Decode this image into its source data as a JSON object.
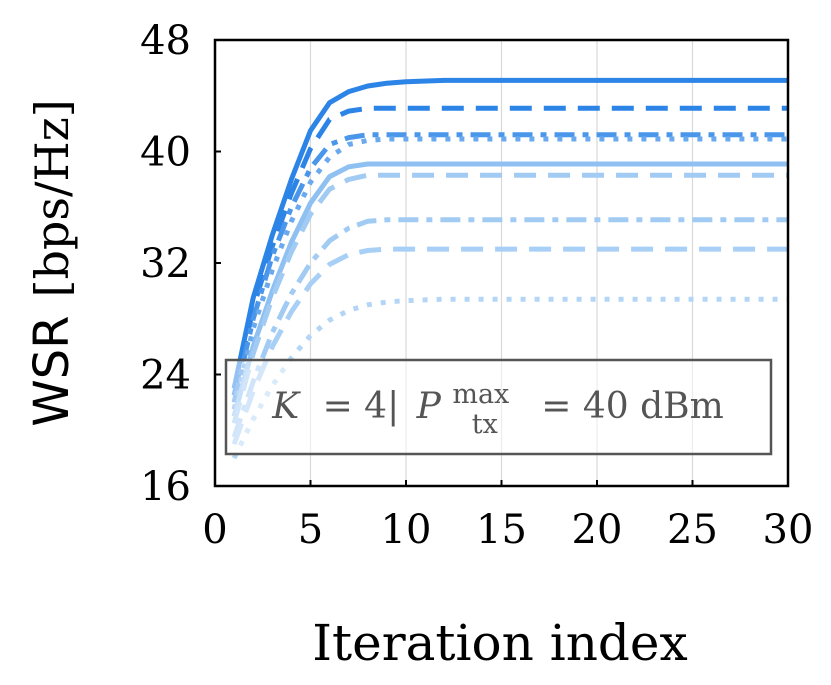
{
  "chart_data": {
    "type": "line",
    "title": "",
    "xlabel": "Iteration index",
    "ylabel": "WSR [bps/Hz]",
    "ylabel_parts": {
      "main": "WSR",
      "unit": "[bps/Hz]"
    },
    "xlim": [
      0,
      30
    ],
    "ylim": [
      16,
      48
    ],
    "xticks": [
      0,
      5,
      10,
      15,
      20,
      25,
      30
    ],
    "yticks": [
      16,
      24,
      32,
      40,
      48
    ],
    "grid": "vertical",
    "annotation": {
      "text": "K = 4 | P_tx^max = 40 dBm",
      "parts": {
        "k": "K",
        "eq1": "= 4|",
        "p": "P",
        "sup": "max",
        "sub": "tx",
        "eq2": "= 40 dBm"
      }
    },
    "x": [
      1,
      2,
      3,
      4,
      5,
      6,
      7,
      8,
      9,
      10,
      12,
      15,
      20,
      25,
      30
    ],
    "series": [
      {
        "color": "#2b84e6",
        "dash": "solid",
        "width": 5,
        "values": [
          23.0,
          29.5,
          34.0,
          38.0,
          41.5,
          43.5,
          44.3,
          44.7,
          44.9,
          45.0,
          45.1,
          45.1,
          45.1,
          45.1,
          45.1
        ]
      },
      {
        "color": "#2b84e6",
        "dash": "dashed",
        "width": 5,
        "values": [
          22.5,
          28.8,
          33.2,
          37.0,
          40.2,
          42.3,
          42.9,
          43.1,
          43.1,
          43.1,
          43.1,
          43.1,
          43.1,
          43.1,
          43.1
        ]
      },
      {
        "color": "#4a96ea",
        "dash": "dashdot",
        "width": 5,
        "values": [
          22.0,
          28.0,
          32.5,
          36.0,
          38.8,
          40.5,
          41.0,
          41.2,
          41.2,
          41.2,
          41.2,
          41.2,
          41.2,
          41.2,
          41.2
        ]
      },
      {
        "color": "#6aa9ee",
        "dash": "dotted",
        "width": 5,
        "values": [
          21.5,
          27.3,
          31.5,
          35.0,
          37.8,
          39.6,
          40.5,
          40.8,
          40.9,
          40.9,
          40.9,
          40.9,
          40.9,
          40.9,
          40.9
        ]
      },
      {
        "color": "#8ec0f2",
        "dash": "solid",
        "width": 5,
        "values": [
          21.0,
          26.0,
          30.0,
          33.5,
          36.3,
          38.2,
          38.9,
          39.1,
          39.1,
          39.1,
          39.1,
          39.1,
          39.1,
          39.1,
          39.1
        ]
      },
      {
        "color": "#a2cbf4",
        "dash": "dashed",
        "width": 5,
        "values": [
          20.5,
          25.5,
          29.5,
          32.8,
          35.5,
          37.3,
          38.0,
          38.3,
          38.3,
          38.3,
          38.3,
          38.3,
          38.3,
          38.3,
          38.3
        ]
      },
      {
        "color": "#a2cbf4",
        "dash": "dashdot",
        "width": 5,
        "values": [
          19.5,
          23.5,
          27.0,
          29.8,
          32.0,
          33.6,
          34.5,
          35.0,
          35.1,
          35.1,
          35.1,
          35.1,
          35.1,
          35.1,
          35.1
        ]
      },
      {
        "color": "#a8cff5",
        "dash": "dashed",
        "width": 5,
        "values": [
          19.0,
          22.8,
          26.0,
          28.5,
          30.5,
          31.9,
          32.6,
          32.9,
          33.0,
          33.0,
          33.0,
          33.0,
          33.0,
          33.0,
          33.0
        ]
      },
      {
        "color": "#b3d5f6",
        "dash": "dotted",
        "width": 5,
        "values": [
          18.0,
          20.8,
          23.2,
          25.2,
          26.8,
          27.9,
          28.6,
          29.0,
          29.2,
          29.3,
          29.4,
          29.4,
          29.4,
          29.4,
          29.4
        ]
      }
    ]
  }
}
